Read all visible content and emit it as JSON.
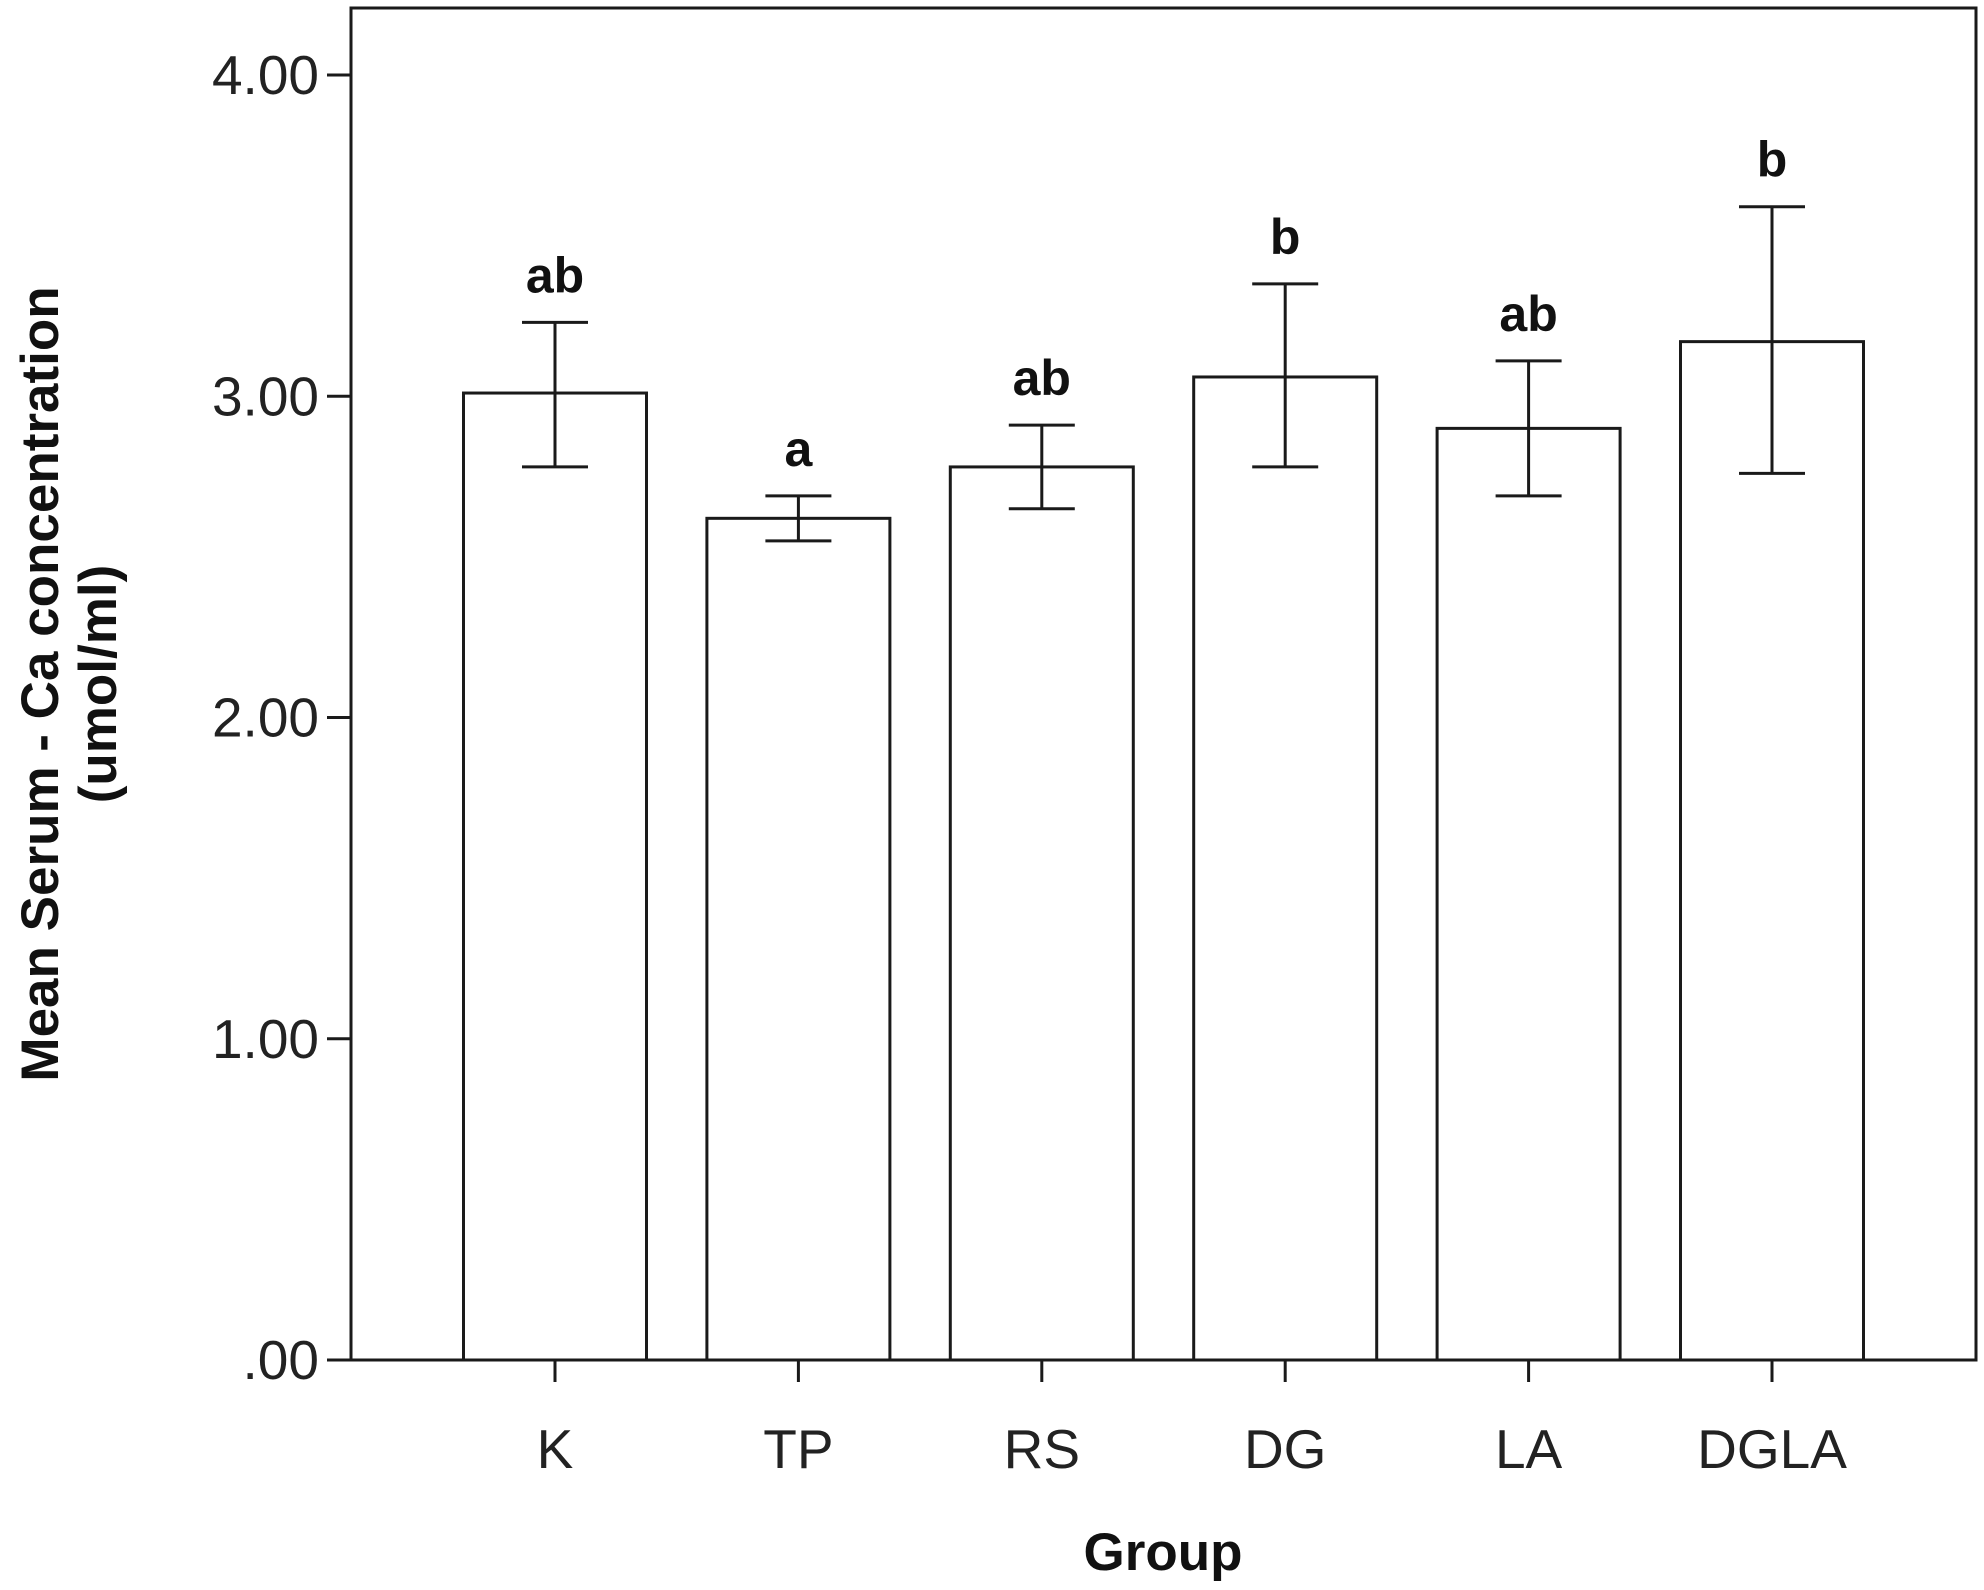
{
  "chart_data": {
    "type": "bar",
    "title": "",
    "xlabel": "Group",
    "ylabel_lines": [
      "Mean Serum - Ca concentration",
      "(umol/ml)"
    ],
    "categories": [
      "K",
      "TP",
      "RS",
      "DG",
      "LA",
      "DGLA"
    ],
    "values": [
      3.01,
      2.62,
      2.78,
      3.06,
      2.9,
      3.17
    ],
    "error_low": [
      2.78,
      2.55,
      2.65,
      2.78,
      2.69,
      2.76
    ],
    "error_high": [
      3.23,
      2.69,
      2.91,
      3.35,
      3.11,
      3.59
    ],
    "significance_labels": [
      "ab",
      "a",
      "ab",
      "b",
      "ab",
      "b"
    ],
    "ylim": [
      0,
      4.2
    ],
    "yticks": [
      0,
      1,
      2,
      3,
      4
    ],
    "ytick_labels": [
      ".00",
      "1.00",
      "2.00",
      "3.00",
      "4.00"
    ],
    "grid": false,
    "legend": "none",
    "colors": {
      "bar_fill": "#ffffff",
      "bar_stroke": "#1a1a1a",
      "axis": "#1a1a1a"
    }
  }
}
